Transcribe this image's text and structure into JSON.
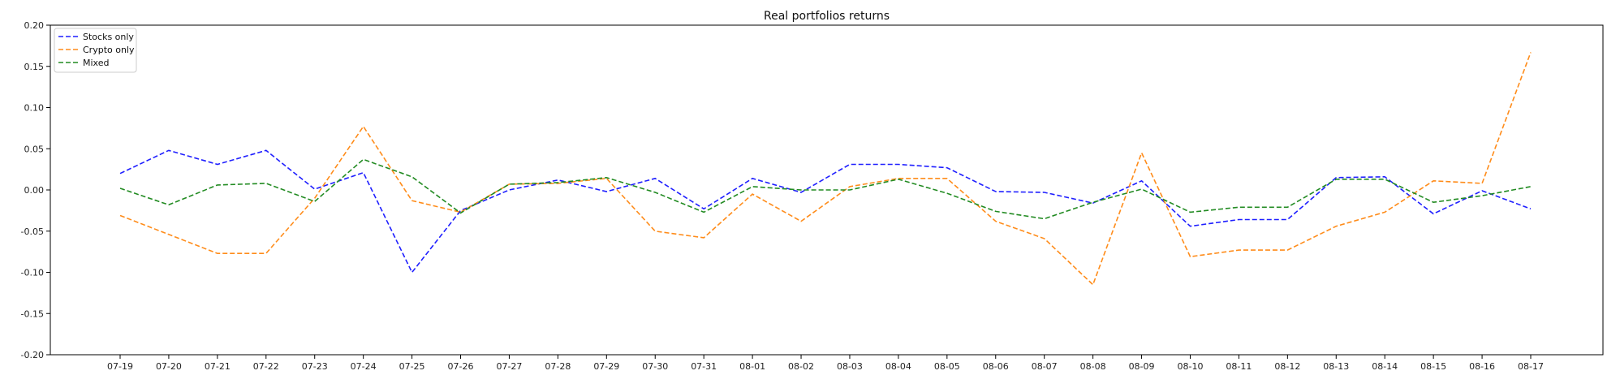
{
  "chart_data": {
    "type": "line",
    "title": "Real portfolios returns",
    "xlabel": "",
    "ylabel": "",
    "ylim": [
      -0.2,
      0.2
    ],
    "yticks": [
      "-0.20",
      "-0.15",
      "-0.10",
      "-0.05",
      "0.00",
      "0.05",
      "0.10",
      "0.15",
      "0.20"
    ],
    "ytick_values": [
      -0.2,
      -0.15,
      -0.1,
      -0.05,
      0.0,
      0.05,
      0.1,
      0.15,
      0.2
    ],
    "grid": false,
    "legend_position": "top-left",
    "categories": [
      "07-19",
      "07-20",
      "07-21",
      "07-22",
      "07-23",
      "07-24",
      "07-25",
      "07-26",
      "07-27",
      "07-28",
      "07-29",
      "07-30",
      "07-31",
      "08-01",
      "08-02",
      "08-03",
      "08-04",
      "08-05",
      "08-06",
      "08-07",
      "08-08",
      "08-09",
      "08-10",
      "08-11",
      "08-12",
      "08-13",
      "08-14",
      "08-15",
      "08-16",
      "08-17"
    ],
    "series": [
      {
        "name": "Stocks only",
        "color": "#1f1fff",
        "line_style": "dashed",
        "values": [
          0.02,
          0.048,
          0.031,
          0.048,
          0.001,
          0.021,
          -0.1,
          -0.025,
          0.0,
          0.012,
          -0.002,
          0.014,
          -0.023,
          0.014,
          -0.003,
          0.031,
          0.031,
          0.027,
          -0.002,
          -0.003,
          -0.016,
          0.011,
          -0.044,
          -0.036,
          -0.036,
          0.015,
          0.016,
          -0.029,
          -0.001,
          -0.023
        ]
      },
      {
        "name": "Crypto only",
        "color": "#ff8c1a",
        "line_style": "dashed",
        "values": [
          -0.031,
          -0.054,
          -0.077,
          -0.077,
          -0.01,
          0.077,
          -0.013,
          -0.027,
          0.007,
          0.008,
          0.014,
          -0.05,
          -0.058,
          -0.005,
          -0.038,
          0.004,
          0.014,
          0.014,
          -0.038,
          -0.059,
          -0.115,
          0.045,
          -0.081,
          -0.073,
          -0.073,
          -0.044,
          -0.027,
          0.011,
          0.008,
          0.167
        ]
      },
      {
        "name": "Mixed",
        "color": "#228b22",
        "line_style": "dashed",
        "values": [
          0.002,
          -0.018,
          0.006,
          0.008,
          -0.014,
          0.037,
          0.016,
          -0.028,
          0.007,
          0.009,
          0.015,
          -0.003,
          -0.027,
          0.004,
          0.0,
          0.0,
          0.013,
          -0.004,
          -0.026,
          -0.035,
          -0.015,
          0.001,
          -0.027,
          -0.021,
          -0.021,
          0.013,
          0.013,
          -0.015,
          -0.007,
          0.004
        ]
      }
    ]
  }
}
